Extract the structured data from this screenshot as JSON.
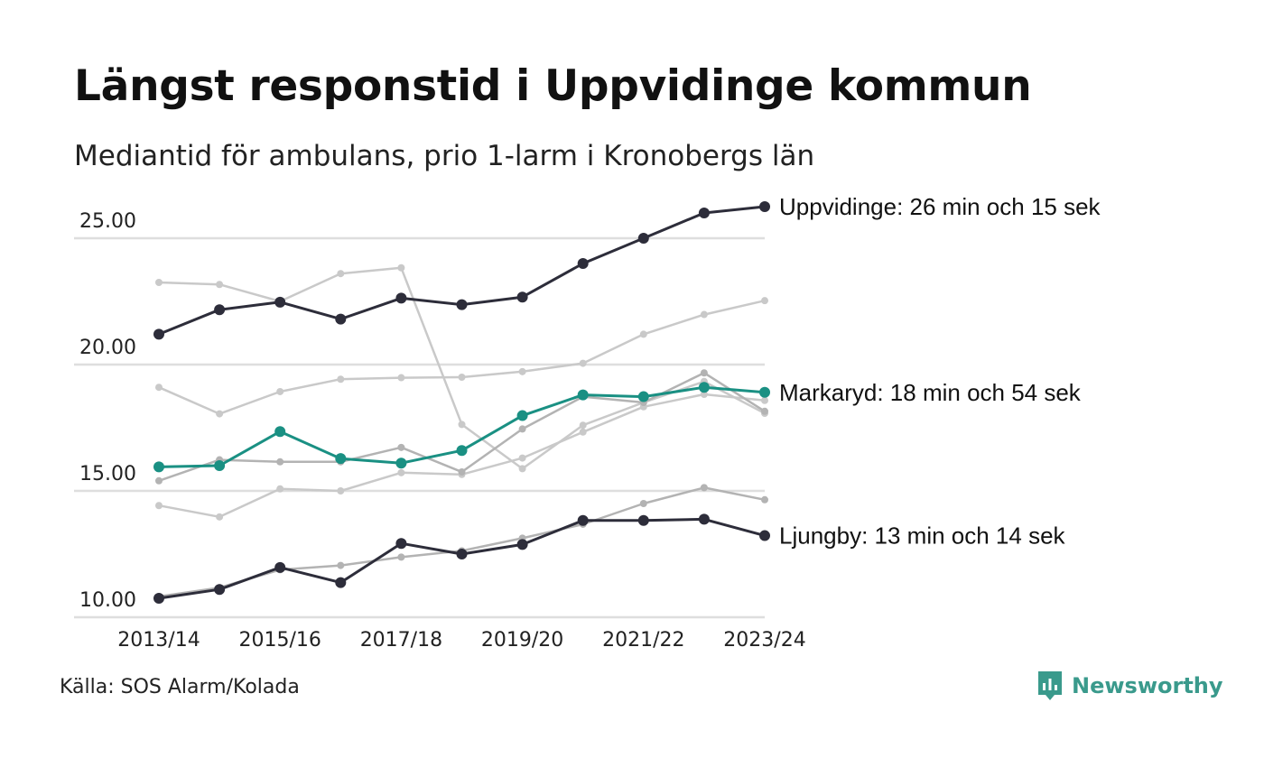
{
  "title": "Längst responstid i Uppvidinge kommun",
  "subtitle": "Mediantid för ambulans, prio 1-larm i Kronobergs län",
  "source": "Källa: SOS Alarm/Kolada",
  "brand": {
    "name": "Newsworthy",
    "icon": "newsworthy-logo-icon",
    "color": "#3a9a8c"
  },
  "chart_data": {
    "type": "line",
    "x": [
      "2013/14",
      "2014/15",
      "2015/16",
      "2016/17",
      "2017/18",
      "2018/19",
      "2019/20",
      "2020/21",
      "2021/22",
      "2022/23",
      "2023/24"
    ],
    "xticks": [
      "2013/14",
      "2015/16",
      "2017/18",
      "2019/20",
      "2021/22",
      "2023/24"
    ],
    "yticks": [
      "10.00",
      "15.00",
      "20.00",
      "25.00"
    ],
    "ylim": [
      10,
      26.5
    ],
    "grid": true,
    "legend": "none",
    "series": [
      {
        "name": "Uppvidinge",
        "color": "#2d2d3a",
        "highlight": true,
        "end_label": "Uppvidinge: 26 min och 15 sek",
        "values": [
          21.2,
          22.17,
          22.47,
          21.8,
          22.63,
          22.37,
          22.67,
          24.0,
          25.0,
          26.0,
          26.25
        ]
      },
      {
        "name": "Markaryd",
        "color": "#1a9083",
        "highlight": true,
        "end_label": "Markaryd: 18 min och 54 sek",
        "values": [
          15.95,
          16.0,
          17.35,
          16.28,
          16.1,
          16.6,
          17.98,
          18.8,
          18.73,
          19.1,
          18.9
        ]
      },
      {
        "name": "Ljungby",
        "color": "#2d2d3a",
        "highlight": true,
        "end_label": "Ljungby: 13 min och 14 sek",
        "values": [
          10.75,
          11.1,
          11.97,
          11.37,
          12.92,
          12.5,
          12.88,
          13.83,
          13.83,
          13.88,
          13.23
        ]
      },
      {
        "name": "",
        "color": "#c9c9c9",
        "values": [
          23.25,
          23.17,
          22.5,
          23.6,
          23.83,
          17.63,
          15.88,
          17.6,
          18.5,
          19.33,
          18.07
        ]
      },
      {
        "name": "",
        "color": "#c9c9c9",
        "values": [
          19.1,
          18.05,
          18.93,
          19.42,
          19.48,
          19.5,
          19.72,
          20.05,
          21.2,
          21.98,
          22.53
        ]
      },
      {
        "name": "",
        "color": "#c9c9c9",
        "values": [
          14.42,
          13.97,
          15.08,
          15.0,
          15.72,
          15.65,
          16.3,
          17.33,
          18.33,
          18.82,
          18.58
        ]
      },
      {
        "name": "",
        "color": "#b3b3b3",
        "values": [
          15.4,
          16.23,
          16.15,
          16.15,
          16.72,
          15.75,
          17.45,
          18.73,
          18.5,
          19.67,
          18.15
        ]
      },
      {
        "name": "",
        "color": "#b3b3b3",
        "values": [
          10.82,
          11.17,
          11.88,
          12.05,
          12.38,
          12.63,
          13.13,
          13.68,
          14.5,
          15.13,
          14.65
        ]
      }
    ]
  }
}
